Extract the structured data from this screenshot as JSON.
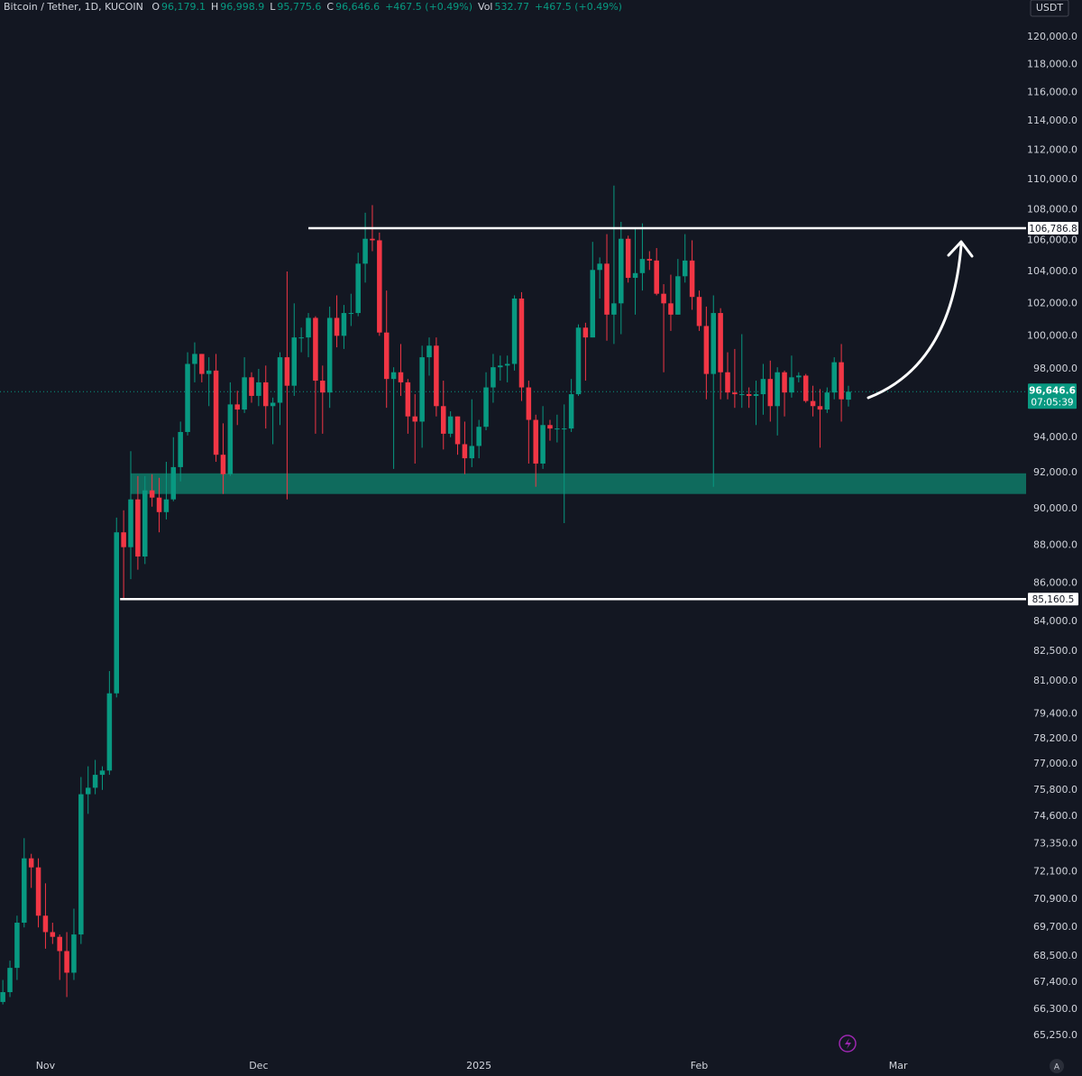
{
  "chart_data": {
    "type": "candlestick",
    "title": "Bitcoin / Tether, 1D, KUCOIN",
    "legend": [
      {
        "key": "O",
        "value": "96,179.1"
      },
      {
        "key": "H",
        "value": "96,998.9"
      },
      {
        "key": "L",
        "value": "95,775.6"
      },
      {
        "key": "C",
        "value": "96,646.6"
      }
    ],
    "change": "+467.5 (+0.49%)",
    "volume": {
      "key": "Vol",
      "value": "532.77",
      "change": "+467.5 (+0.49%)"
    },
    "currency": "USDT",
    "scale_mode": "A",
    "log_scale": true,
    "grid": false,
    "up_color": "#089981",
    "down_color": "#f23645",
    "background": "#131722",
    "text_color": "#d1d4dc",
    "open": [
      66600,
      67000,
      68000,
      69900,
      72700,
      72300,
      70200,
      69500,
      69300,
      68700,
      67800,
      69400,
      75600,
      75900,
      76500,
      76700,
      80400,
      88700,
      87900,
      90500,
      87400,
      91000,
      90600,
      89800,
      90500,
      92300,
      94300,
      98300,
      98900,
      97700,
      97900,
      93000,
      91900,
      95900,
      95600,
      97500,
      96400,
      97200,
      95800,
      96000,
      98700,
      97000,
      99900,
      99900,
      101100,
      97300,
      96600,
      101100,
      100000,
      101400,
      101400,
      104500,
      106100,
      106000,
      100200,
      97400,
      97800,
      97200,
      95200,
      94900,
      98700,
      99400,
      95800,
      94200,
      95200,
      93600,
      92800,
      93500,
      94600,
      96900,
      98100,
      98200,
      98300,
      102300,
      96900,
      95000,
      92500,
      94700,
      94500,
      94500,
      94500,
      96500,
      100500,
      99900,
      104100,
      104500,
      101300,
      102000,
      106100,
      103600,
      103900,
      104800,
      104700,
      102600,
      102000,
      101300,
      103700,
      104700,
      102400,
      100600,
      97700,
      101400,
      97800,
      96600,
      96500,
      96500,
      96400,
      96500,
      97400,
      95800,
      97800,
      96600,
      97500,
      97600,
      96100,
      95800,
      95600,
      96600,
      98400,
      96179.1
    ],
    "high": [
      67500,
      68300,
      70200,
      73600,
      72900,
      72700,
      71600,
      69900,
      69400,
      69500,
      70500,
      76400,
      76900,
      77200,
      76900,
      81500,
      89500,
      89900,
      93200,
      91800,
      91800,
      91900,
      91700,
      92600,
      94000,
      94900,
      99000,
      99600,
      98900,
      98700,
      98900,
      94800,
      97200,
      96700,
      98700,
      97800,
      98000,
      98200,
      96300,
      99000,
      104000,
      102000,
      100500,
      101400,
      101200,
      98200,
      101800,
      102500,
      101900,
      102600,
      105200,
      107800,
      108300,
      106500,
      102800,
      98100,
      99500,
      97400,
      96500,
      99400,
      99900,
      99900,
      97300,
      95500,
      95200,
      94900,
      96200,
      95000,
      97800,
      98900,
      98800,
      98800,
      102500,
      102700,
      97300,
      95300,
      95800,
      95000,
      95300,
      95900,
      97400,
      100700,
      100800,
      105900,
      104900,
      106400,
      109600,
      107200,
      106300,
      106800,
      107100,
      105300,
      105500,
      103200,
      103800,
      104800,
      106400,
      106000,
      102800,
      101800,
      102500,
      101700,
      99000,
      99200,
      100100,
      96900,
      97300,
      98300,
      98500,
      98100,
      97900,
      98800,
      97800,
      97700,
      97000,
      96800,
      96900,
      98700,
      99500,
      96998.9
    ],
    "low": [
      66500,
      66800,
      67500,
      69700,
      71400,
      69700,
      68800,
      69000,
      67500,
      66800,
      67500,
      69000,
      74700,
      75600,
      75800,
      76500,
      80200,
      85100,
      86200,
      86700,
      87000,
      90100,
      88700,
      89400,
      90400,
      91500,
      94100,
      97200,
      97200,
      95800,
      92600,
      90800,
      91800,
      94700,
      95400,
      96000,
      95800,
      94500,
      93600,
      94700,
      90500,
      96400,
      99000,
      98700,
      94200,
      94200,
      95700,
      99300,
      99200,
      100600,
      101200,
      103300,
      105300,
      100000,
      95700,
      92200,
      96400,
      94200,
      92500,
      93400,
      97600,
      95200,
      93300,
      94000,
      93000,
      91900,
      92300,
      92800,
      94400,
      96000,
      97300,
      97200,
      97900,
      96100,
      92500,
      91200,
      92200,
      93800,
      93700,
      89200,
      94300,
      96400,
      97300,
      99900,
      102300,
      99700,
      99500,
      100100,
      103300,
      101300,
      102800,
      104100,
      102500,
      97800,
      100300,
      101300,
      103300,
      101600,
      100300,
      96200,
      91200,
      96200,
      96200,
      95700,
      95700,
      95700,
      94700,
      95300,
      94900,
      94100,
      95200,
      96300,
      97200,
      96000,
      95200,
      93400,
      95400,
      96200,
      94900,
      95775.6
    ],
    "close": [
      67000,
      68000,
      69900,
      72700,
      72300,
      70200,
      69500,
      69300,
      68700,
      67800,
      69400,
      75600,
      75900,
      76500,
      76700,
      80400,
      88700,
      87900,
      90500,
      87400,
      91000,
      90600,
      89800,
      90500,
      92300,
      94300,
      98300,
      98900,
      97700,
      97900,
      93000,
      91900,
      95900,
      95600,
      97500,
      96400,
      97200,
      95800,
      96000,
      98700,
      97000,
      99900,
      99900,
      101100,
      97300,
      96600,
      101100,
      100000,
      101400,
      101400,
      104500,
      106100,
      106000,
      100200,
      97400,
      97800,
      97200,
      95200,
      94900,
      98700,
      99400,
      95800,
      94200,
      95200,
      93600,
      92800,
      93500,
      94600,
      96900,
      98100,
      98200,
      98300,
      102300,
      96900,
      95000,
      92500,
      94700,
      94500,
      94500,
      94500,
      96500,
      100500,
      99900,
      104100,
      104500,
      101300,
      102000,
      106100,
      103600,
      103900,
      104800,
      104700,
      102600,
      102000,
      101300,
      103700,
      104700,
      102400,
      100600,
      97700,
      101400,
      97800,
      96600,
      96500,
      96500,
      96400,
      96500,
      97400,
      95800,
      97800,
      96600,
      97500,
      97600,
      96100,
      95800,
      95600,
      96600,
      98400,
      96200,
      96646.6
    ],
    "xlim": [
      -0.4,
      144
    ],
    "xticks": [
      {
        "value": 6,
        "label": "Nov"
      },
      {
        "value": 36,
        "label": "Dec"
      },
      {
        "value": 67,
        "label": "2025"
      },
      {
        "value": 98,
        "label": "Feb"
      },
      {
        "value": 126,
        "label": "Mar"
      }
    ],
    "ylim": [
      64540,
      122740
    ],
    "yticks": [
      {
        "value": 120000,
        "label": "120,000.0"
      },
      {
        "value": 118000,
        "label": "118,000.0"
      },
      {
        "value": 116000,
        "label": "116,000.0"
      },
      {
        "value": 114000,
        "label": "114,000.0"
      },
      {
        "value": 112000,
        "label": "112,000.0"
      },
      {
        "value": 110000,
        "label": "110,000.0"
      },
      {
        "value": 108000,
        "label": "108,000.0"
      },
      {
        "value": 106000,
        "label": "106,000.0"
      },
      {
        "value": 104000,
        "label": "104,000.0"
      },
      {
        "value": 102000,
        "label": "102,000.0"
      },
      {
        "value": 100000,
        "label": "100,000.0"
      },
      {
        "value": 98000,
        "label": "98,000.0"
      },
      {
        "value": 94000,
        "label": "94,000.0"
      },
      {
        "value": 92000,
        "label": "92,000.0"
      },
      {
        "value": 90000,
        "label": "90,000.0"
      },
      {
        "value": 88000,
        "label": "88,000.0"
      },
      {
        "value": 86000,
        "label": "86,000.0"
      },
      {
        "value": 84000,
        "label": "84,000.0"
      },
      {
        "value": 82500,
        "label": "82,500.0"
      },
      {
        "value": 81000,
        "label": "81,000.0"
      },
      {
        "value": 79400,
        "label": "79,400.0"
      },
      {
        "value": 78200,
        "label": "78,200.0"
      },
      {
        "value": 77000,
        "label": "77,000.0"
      },
      {
        "value": 75800,
        "label": "75,800.0"
      },
      {
        "value": 74600,
        "label": "74,600.0"
      },
      {
        "value": 73350,
        "label": "73,350.0"
      },
      {
        "value": 72100,
        "label": "72,100.0"
      },
      {
        "value": 70900,
        "label": "70,900.0"
      },
      {
        "value": 69700,
        "label": "69,700.0"
      },
      {
        "value": 68500,
        "label": "68,500.0"
      },
      {
        "value": 67400,
        "label": "67,400.0"
      },
      {
        "value": 66300,
        "label": "66,300.0"
      },
      {
        "value": 65250,
        "label": "65,250.0"
      }
    ],
    "levels": [
      {
        "value": 106786.8,
        "label": "106,786.8",
        "start": 43
      },
      {
        "value": 85160.5,
        "label": "85,160.5",
        "start": 16.5
      }
    ],
    "zone": {
      "low": 90800,
      "high": 91950,
      "start": 18,
      "color": "#0f6b5d"
    },
    "last_price": {
      "value": 96646.6,
      "label": "96,646.6",
      "countdown": "07:05:39"
    }
  }
}
